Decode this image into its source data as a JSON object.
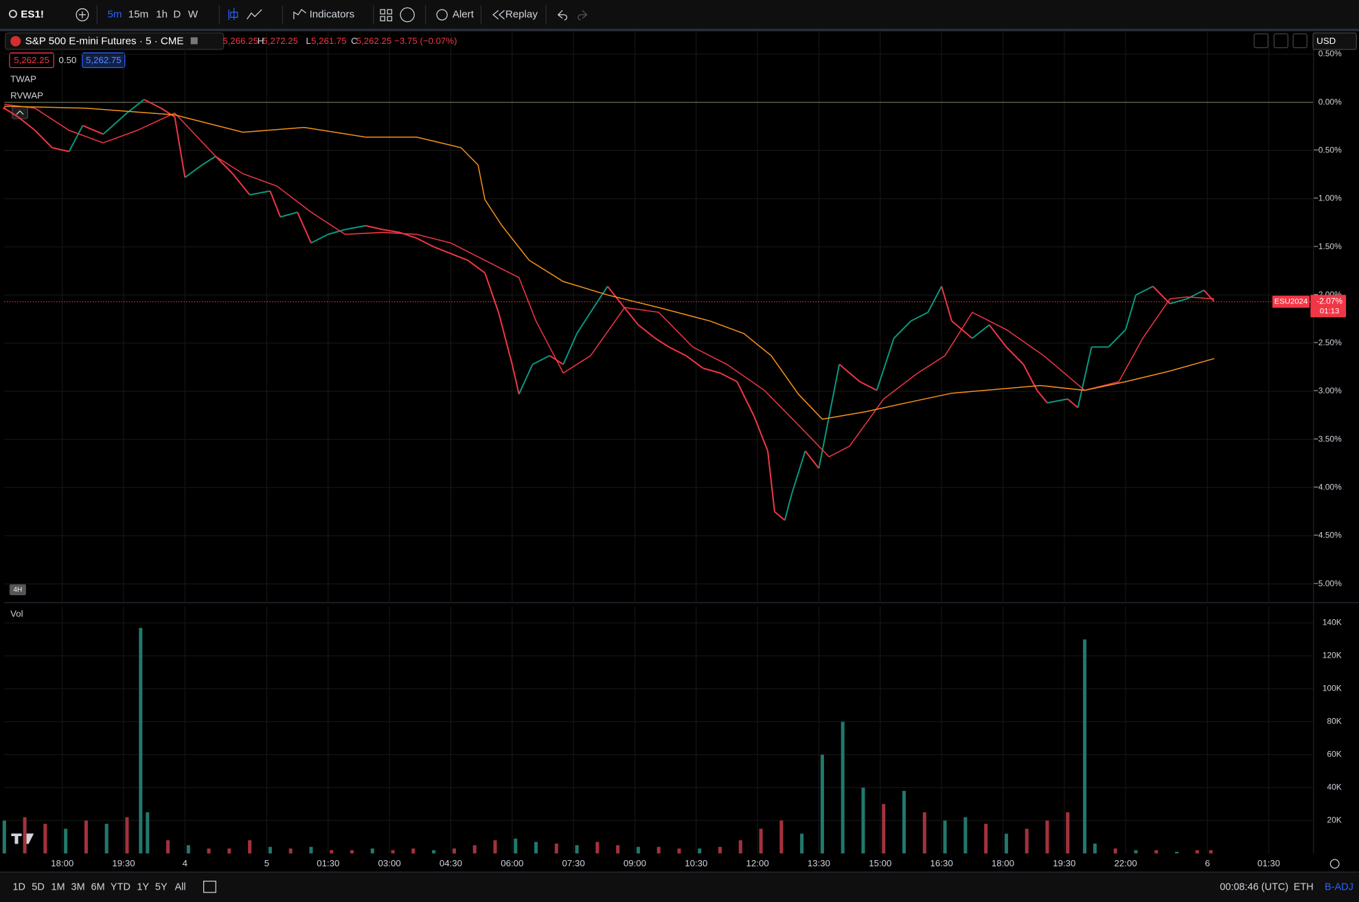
{
  "toolbar": {
    "symbol": "ES1!",
    "intervals": [
      "5m",
      "15m",
      "1h",
      "D",
      "W"
    ],
    "indicators": "Indicators",
    "alert": "Alert",
    "replay": "Replay"
  },
  "legend": {
    "ohlc": [
      "5,266.25",
      "H",
      "5,272.25",
      "L",
      "5,261.75",
      "C",
      "5,262.25",
      "−3.75 (−0.07%)"
    ],
    "quote": [
      "5,262.25",
      "0.50",
      "5,262.75"
    ],
    "resolution_badge": "4H",
    "currency": "USD"
  },
  "price_tag": {
    "symbol": "ESU2024",
    "change": "-2.07%",
    "countdown": "01:13"
  },
  "chart_data": [
    {
      "type": "line",
      "title": "S&P 500 E-mini Futures · 5 · CME",
      "xlim": [
        0,
        384
      ],
      "ylim": [
        -5.19,
        0.73
      ],
      "grid": true,
      "up_color": "#089981",
      "down_color": "#f23645",
      "yticks": [
        {
          "value": 0.5,
          "label": "0.50%"
        },
        {
          "value": 0,
          "label": "0.00%"
        },
        {
          "value": -0.5,
          "label": "−0.50%"
        },
        {
          "value": -1,
          "label": "−1.00%"
        },
        {
          "value": -1.5,
          "label": "−1.50%"
        },
        {
          "value": -2,
          "label": "−2.00%"
        },
        {
          "value": -2.5,
          "label": "−2.50%"
        },
        {
          "value": -3,
          "label": "−3.00%"
        },
        {
          "value": -3.5,
          "label": "−3.50%"
        },
        {
          "value": -4,
          "label": "−4.00%"
        },
        {
          "value": -4.5,
          "label": "−4.50%"
        },
        {
          "value": -5,
          "label": "−5.00%"
        }
      ],
      "series": [
        {
          "color": "#d1d4dc",
          "x": [
            0,
            4,
            9,
            14,
            19,
            23,
            29,
            36,
            41,
            46,
            50,
            53,
            58,
            62,
            67,
            72,
            78,
            81,
            86,
            90,
            95,
            100,
            106,
            111,
            116,
            121,
            126,
            131,
            136,
            141,
            145,
            149,
            151,
            155,
            160,
            164,
            168,
            172,
            177,
            181,
            186,
            191,
            195,
            200,
            205,
            210,
            215,
            220,
            224,
            226,
            229,
            231,
            235,
            239,
            242,
            245,
            251,
            256,
            261,
            266,
            271,
            275,
            278,
            284,
            289,
            294,
            299,
            303,
            306,
            312,
            315,
            319,
            324,
            329,
            332,
            337,
            342,
            347,
            352,
            355
          ],
          "values": [
            -0.06,
            -0.15,
            -0.29,
            -0.47,
            -0.51,
            -0.24,
            -0.33,
            -0.11,
            0.03,
            -0.06,
            -0.15,
            -0.78,
            -0.65,
            -0.56,
            -0.74,
            -0.96,
            -0.92,
            -1.19,
            -1.14,
            -1.46,
            -1.37,
            -1.32,
            -1.28,
            -1.32,
            -1.35,
            -1.41,
            -1.5,
            -1.57,
            -1.64,
            -1.77,
            -2.18,
            -2.72,
            -3.03,
            -2.72,
            -2.63,
            -2.72,
            -2.4,
            -2.18,
            -1.91,
            -2.09,
            -2.31,
            -2.45,
            -2.54,
            -2.63,
            -2.76,
            -2.81,
            -2.9,
            -3.26,
            -3.62,
            -4.25,
            -4.34,
            -4.07,
            -3.62,
            -3.8,
            -3.26,
            -2.72,
            -2.9,
            -2.99,
            -2.45,
            -2.27,
            -2.18,
            -1.91,
            -2.27,
            -2.45,
            -2.31,
            -2.54,
            -2.72,
            -2.99,
            -3.12,
            -3.08,
            -3.17,
            -2.54,
            -2.54,
            -2.36,
            -2,
            -1.91,
            -2.09,
            -2.04,
            -1.95,
            -2.07
          ]
        },
        {
          "name": "TWAP",
          "color": "#f23645",
          "x": [
            0,
            9,
            19,
            29,
            39,
            50,
            62,
            70,
            80,
            90,
            100,
            111,
            121,
            131,
            141,
            151,
            156,
            164,
            172,
            182,
            192,
            202,
            212,
            223,
            233,
            242,
            248,
            258,
            268,
            276,
            284,
            294,
            305,
            317,
            327,
            334,
            342,
            347,
            355
          ],
          "values": [
            -0.02,
            -0.06,
            -0.29,
            -0.42,
            -0.29,
            -0.11,
            -0.56,
            -0.74,
            -0.87,
            -1.14,
            -1.37,
            -1.35,
            -1.37,
            -1.46,
            -1.64,
            -1.82,
            -2.27,
            -2.81,
            -2.63,
            -2.13,
            -2.18,
            -2.54,
            -2.72,
            -2.99,
            -3.35,
            -3.68,
            -3.57,
            -3.08,
            -2.81,
            -2.63,
            -2.18,
            -2.36,
            -2.63,
            -2.99,
            -2.9,
            -2.45,
            -2.04,
            -2.02,
            -2.04
          ]
        },
        {
          "name": "RVWAP",
          "color": "#f7931a",
          "x": [
            0,
            24,
            50,
            70,
            88,
            106,
            121,
            134,
            139,
            141,
            146,
            154,
            164,
            177,
            192,
            207,
            217,
            225,
            233,
            240,
            253,
            266,
            278,
            304,
            317,
            329,
            342,
            355
          ],
          "values": [
            -0.04,
            -0.06,
            -0.13,
            -0.31,
            -0.26,
            -0.36,
            -0.36,
            -0.47,
            -0.65,
            -1.01,
            -1.28,
            -1.64,
            -1.86,
            -2,
            -2.13,
            -2.27,
            -2.4,
            -2.63,
            -3.03,
            -3.29,
            -3.21,
            -3.11,
            -3.02,
            -2.94,
            -2.99,
            -2.9,
            -2.79,
            -2.66
          ]
        }
      ]
    },
    {
      "type": "bar",
      "title": "Vol",
      "xlim": [
        0,
        384
      ],
      "ylim": [
        0,
        150000
      ],
      "grid": true,
      "yticks": [
        {
          "value": 20000,
          "label": "20K"
        },
        {
          "value": 40000,
          "label": "40K"
        },
        {
          "value": 60000,
          "label": "60K"
        },
        {
          "value": 80000,
          "label": "80K"
        },
        {
          "value": 100000,
          "label": "100K"
        },
        {
          "value": 120000,
          "label": "120K"
        },
        {
          "value": 140000,
          "label": "140K"
        }
      ],
      "xticks": [
        {
          "value": 17,
          "label": "18:00"
        },
        {
          "value": 35,
          "label": "19:30"
        },
        {
          "value": 53,
          "label": "4"
        },
        {
          "value": 77,
          "label": "5"
        },
        {
          "value": 95,
          "label": "01:30"
        },
        {
          "value": 113,
          "label": "03:00"
        },
        {
          "value": 131,
          "label": "04:30"
        },
        {
          "value": 149,
          "label": "06:00"
        },
        {
          "value": 167,
          "label": "07:30"
        },
        {
          "value": 185,
          "label": "09:00"
        },
        {
          "value": 203,
          "label": "10:30"
        },
        {
          "value": 221,
          "label": "12:00"
        },
        {
          "value": 239,
          "label": "13:30"
        },
        {
          "value": 257,
          "label": "15:00"
        },
        {
          "value": 275,
          "label": "16:30"
        },
        {
          "value": 293,
          "label": "18:00"
        },
        {
          "value": 311,
          "label": "19:30"
        },
        {
          "value": 329,
          "label": "22:00"
        },
        {
          "value": 353,
          "label": "6"
        },
        {
          "value": 371,
          "label": "01:30"
        }
      ],
      "x": [
        0,
        6,
        12,
        18,
        24,
        30,
        36,
        40,
        42,
        48,
        54,
        60,
        66,
        72,
        78,
        84,
        90,
        96,
        102,
        108,
        114,
        120,
        126,
        132,
        138,
        144,
        150,
        156,
        162,
        168,
        174,
        180,
        186,
        192,
        198,
        204,
        210,
        216,
        222,
        228,
        234,
        240,
        246,
        252,
        258,
        264,
        270,
        276,
        282,
        288,
        294,
        300,
        306,
        312,
        317,
        320,
        326,
        332,
        338,
        344,
        350,
        354
      ],
      "values": [
        20000,
        22000,
        18000,
        15000,
        20000,
        18000,
        22000,
        137000,
        25000,
        8000,
        5000,
        3000,
        3000,
        8000,
        4000,
        3000,
        4000,
        2000,
        2000,
        3000,
        2000,
        3000,
        2000,
        3000,
        5000,
        8000,
        9000,
        7000,
        6000,
        5000,
        7000,
        5000,
        4000,
        4000,
        3000,
        3000,
        4000,
        8000,
        15000,
        20000,
        12000,
        60000,
        80000,
        40000,
        30000,
        38000,
        25000,
        20000,
        22000,
        18000,
        12000,
        15000,
        20000,
        25000,
        130000,
        6000,
        3000,
        2000,
        2000,
        1000,
        2000,
        2000
      ],
      "colors": [
        "#22786c",
        "#a3323c",
        "#a3323c",
        "#22786c",
        "#a3323c",
        "#22786c",
        "#a3323c",
        "#22786c",
        "#22786c",
        "#a3323c",
        "#22786c",
        "#a3323c",
        "#a3323c",
        "#a3323c",
        "#22786c",
        "#a3323c",
        "#22786c",
        "#a3323c",
        "#a3323c",
        "#22786c",
        "#a3323c",
        "#a3323c",
        "#22786c",
        "#a3323c",
        "#a3323c",
        "#a3323c",
        "#22786c",
        "#22786c",
        "#a3323c",
        "#22786c",
        "#a3323c",
        "#a3323c",
        "#22786c",
        "#a3323c",
        "#a3323c",
        "#22786c",
        "#a3323c",
        "#a3323c",
        "#a3323c",
        "#a3323c",
        "#22786c",
        "#22786c",
        "#22786c",
        "#22786c",
        "#a3323c",
        "#22786c",
        "#a3323c",
        "#22786c",
        "#22786c",
        "#a3323c",
        "#22786c",
        "#a3323c",
        "#a3323c",
        "#a3323c",
        "#22786c",
        "#22786c",
        "#a3323c",
        "#22786c",
        "#a3323c",
        "#22786c",
        "#a3323c",
        "#a3323c"
      ]
    }
  ],
  "bottom_bar": {
    "ranges": [
      "1D",
      "5D",
      "1M",
      "3M",
      "6M",
      "YTD",
      "1Y",
      "5Y",
      "All"
    ],
    "clock": "00:08:46 (UTC)",
    "session": "ETH",
    "adjust": "B-ADJ"
  }
}
